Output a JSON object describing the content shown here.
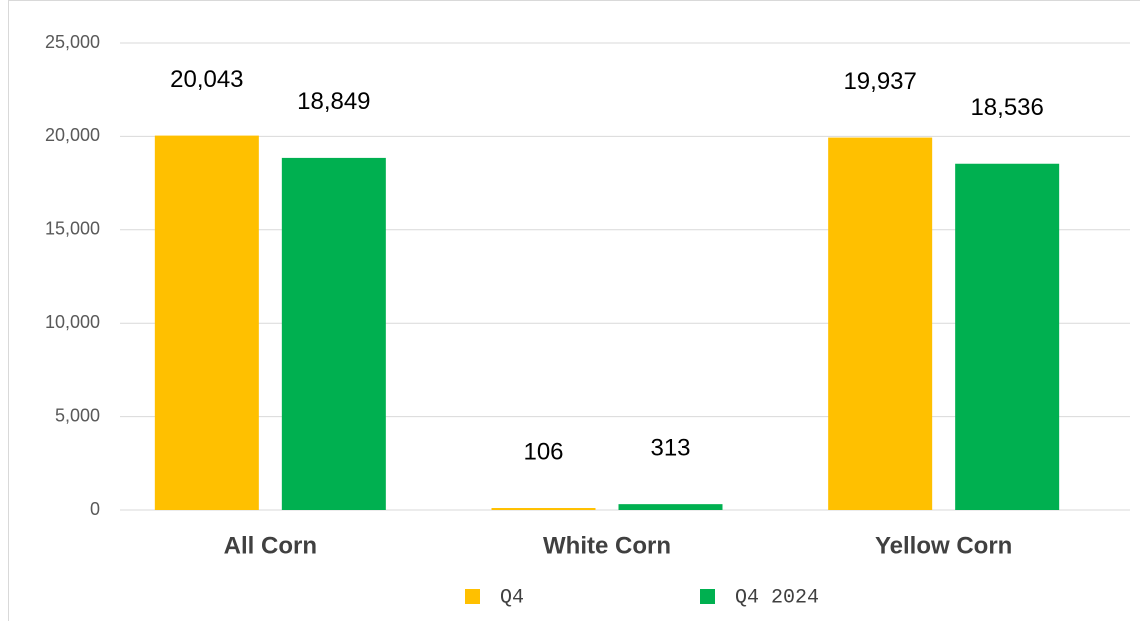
{
  "chart_data": {
    "type": "bar",
    "categories": [
      "All Corn",
      "White Corn",
      "Yellow Corn"
    ],
    "series": [
      {
        "name": "Q4",
        "color": "#FFC000",
        "values": [
          20043,
          106,
          19937
        ],
        "value_labels": [
          "20,043",
          "106",
          "19,937"
        ]
      },
      {
        "name": "Q4 2024",
        "color": "#00B050",
        "values": [
          18849,
          313,
          18536
        ],
        "value_labels": [
          "18,849",
          "313",
          "18,536"
        ]
      }
    ],
    "ylim": [
      0,
      25000
    ],
    "yticks": [
      0,
      {
        "value": 5000,
        "label": "5,000"
      },
      {
        "value": 10000,
        "label": "10,000"
      },
      {
        "value": 15000,
        "label": "15,000"
      },
      {
        "value": 20000,
        "label": "20,000"
      },
      {
        "value": 25000,
        "label": "25,000"
      }
    ],
    "grid": true,
    "legend": "bottom"
  }
}
